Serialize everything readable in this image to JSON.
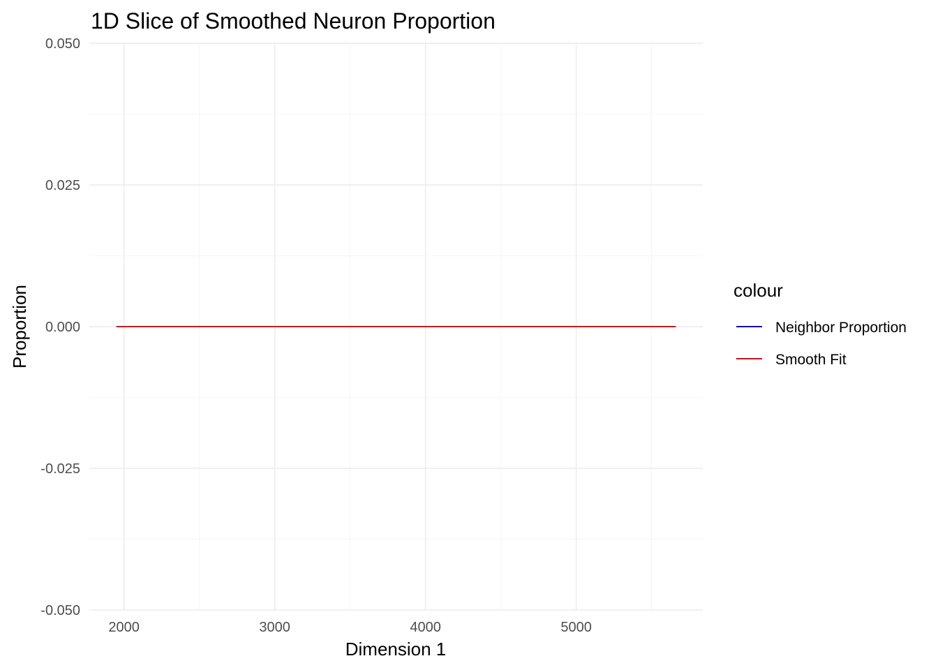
{
  "chart_data": {
    "type": "line",
    "title": "1D Slice of Smoothed Neuron Proportion",
    "xlabel": "Dimension 1",
    "ylabel": "Proportion",
    "xlim": [
      1770,
      5840
    ],
    "ylim": [
      -0.05,
      0.05
    ],
    "x_ticks": [
      2000,
      3000,
      4000,
      5000
    ],
    "x_minor_ticks": [
      2500,
      3500,
      4500,
      5500
    ],
    "y_ticks": [
      -0.05,
      -0.025,
      0.0,
      0.025,
      0.05
    ],
    "y_tick_labels": [
      "-0.050",
      "-0.025",
      "0.000",
      "0.025",
      "0.050"
    ],
    "y_minor_ticks": [
      -0.0375,
      -0.0125,
      0.0125,
      0.0375
    ],
    "grid": true,
    "legend": {
      "title": "colour",
      "placement": "right"
    },
    "series": [
      {
        "name": "Neighbor Proportion",
        "color": "#0000CD",
        "x": [
          1950,
          2500,
          3000,
          3500,
          4000,
          4500,
          5000,
          5500,
          5660
        ],
        "y": [
          0,
          0,
          0,
          0,
          0,
          0,
          0,
          0,
          0
        ]
      },
      {
        "name": "Smooth Fit",
        "color": "#E8000B",
        "x": [
          1950,
          2500,
          3000,
          3500,
          4000,
          4500,
          5000,
          5500,
          5660
        ],
        "y": [
          0,
          0,
          0,
          0,
          0,
          0,
          0,
          0,
          0
        ]
      }
    ]
  }
}
